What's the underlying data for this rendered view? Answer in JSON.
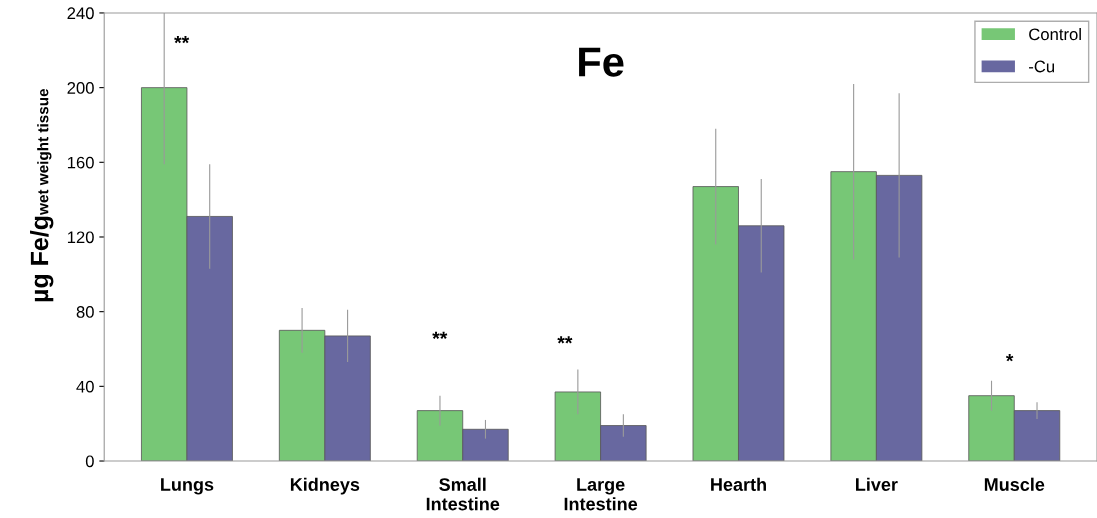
{
  "chart_data": {
    "type": "bar",
    "title": "Fe",
    "ylabel": "µg Fe/g$_{wet weight tissue}$",
    "categories": [
      "Lungs",
      "Kidneys",
      "Small\nIntestine",
      "Large\nIntestine",
      "Hearth",
      "Liver",
      "Muscle"
    ],
    "series": [
      {
        "name": "Control",
        "color": "#77c776",
        "values": [
          200,
          70,
          27,
          37,
          147,
          155,
          35
        ],
        "errors": [
          41,
          12,
          8,
          12,
          31,
          47,
          8
        ]
      },
      {
        "name": "-Cu",
        "color": "#6868a0",
        "values": [
          131,
          67,
          17,
          19,
          126,
          153,
          27
        ],
        "errors": [
          28,
          14,
          5,
          6,
          25,
          44,
          4.5
        ]
      }
    ],
    "ylim": [
      0,
      240
    ],
    "yticks": [
      0,
      40,
      80,
      120,
      160,
      200,
      240
    ],
    "grid": false,
    "legend": "top right",
    "annotations": [
      "**",
      "**",
      "**",
      "*"
    ]
  }
}
